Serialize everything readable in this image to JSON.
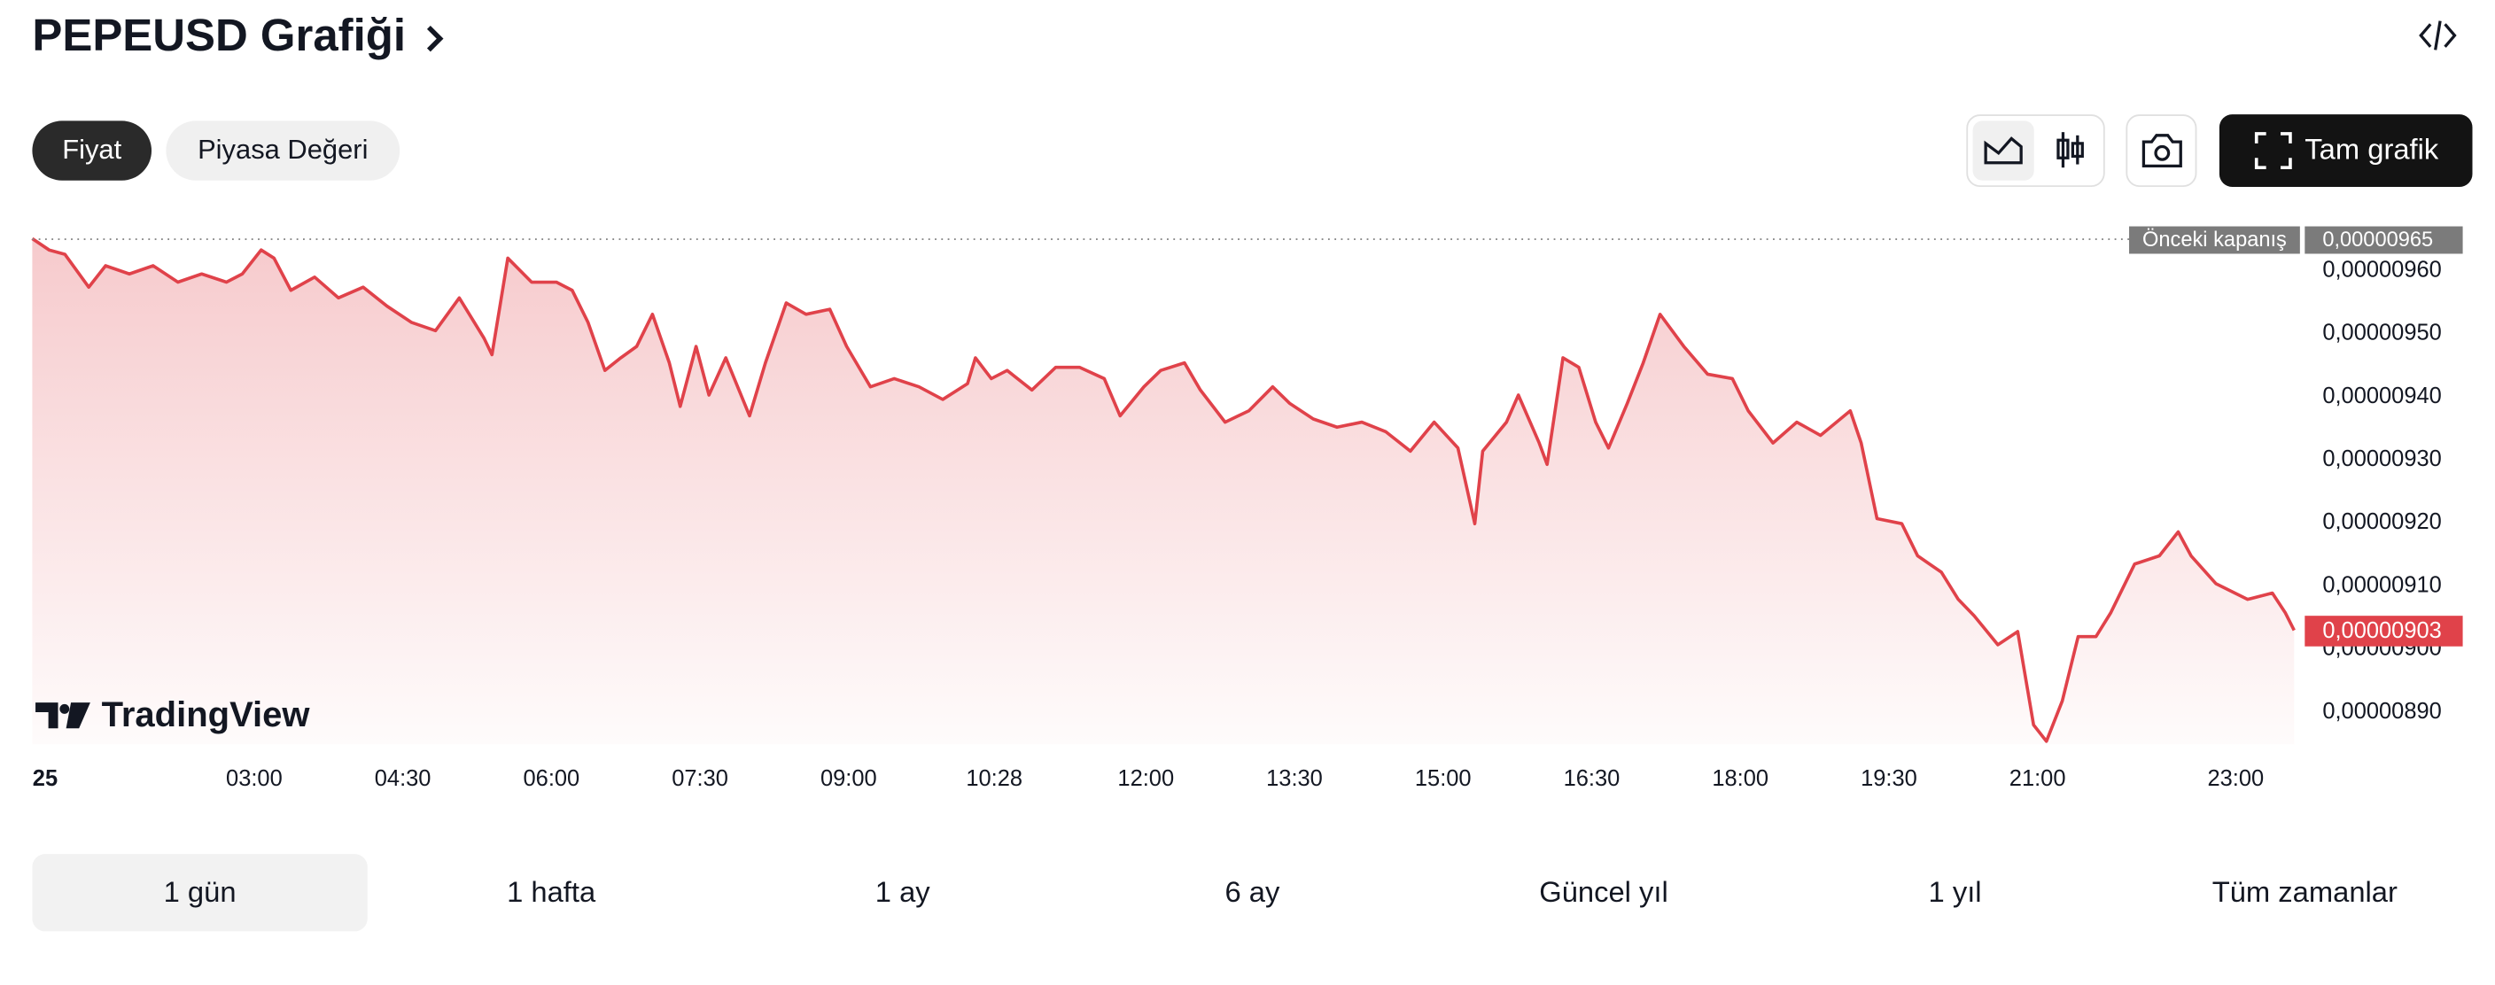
{
  "header": {
    "title": "PEPEUSD Grafiği"
  },
  "tabs": [
    "Fiyat",
    "Piyasa Değeri"
  ],
  "buttons": {
    "full_chart": "Tam grafik"
  },
  "chart_data": {
    "type": "line",
    "color": "#e0424a",
    "x": [
      0.76,
      0.93,
      1.09,
      1.33,
      1.5,
      1.74,
      1.98,
      2.23,
      2.47,
      2.72,
      2.88,
      3.07,
      3.2,
      3.37,
      3.61,
      3.85,
      4.1,
      4.34,
      4.59,
      4.83,
      5.07,
      5.32,
      5.4,
      5.56,
      5.8,
      6.05,
      6.21,
      6.37,
      6.54,
      6.7,
      6.86,
      7.02,
      7.19,
      7.3,
      7.46,
      7.59,
      7.76,
      8.0,
      8.16,
      8.37,
      8.57,
      8.81,
      8.98,
      9.22,
      9.46,
      9.71,
      9.95,
      10.2,
      10.28,
      10.44,
      10.6,
      10.85,
      11.09,
      11.33,
      11.58,
      11.74,
      11.98,
      12.15,
      12.39,
      12.55,
      12.8,
      13.04,
      13.28,
      13.45,
      13.69,
      13.93,
      14.18,
      14.42,
      14.67,
      14.91,
      15.15,
      15.32,
      15.4,
      15.64,
      15.76,
      15.97,
      16.05,
      16.21,
      16.37,
      16.54,
      16.67,
      16.86,
      17.02,
      17.19,
      17.43,
      17.67,
      17.92,
      18.08,
      18.33,
      18.57,
      18.81,
      19.11,
      19.22,
      19.38,
      19.63,
      19.79,
      20.03,
      20.2,
      20.36,
      20.6,
      20.8,
      20.96,
      21.09,
      21.25,
      21.41,
      21.59,
      21.74,
      21.98,
      22.23,
      22.42,
      22.55,
      22.8,
      23.12,
      23.37,
      23.5,
      23.59
    ],
    "values": [
      9.651e-06,
      9.633e-06,
      9.626e-06,
      9.574e-06,
      9.608e-06,
      9.595e-06,
      9.608e-06,
      9.582e-06,
      9.595e-06,
      9.582e-06,
      9.595e-06,
      9.633e-06,
      9.62e-06,
      9.569e-06,
      9.59e-06,
      9.557e-06,
      9.574e-06,
      9.544e-06,
      9.518e-06,
      9.505e-06,
      9.557e-06,
      9.493e-06,
      9.467e-06,
      9.62e-06,
      9.582e-06,
      9.582e-06,
      9.569e-06,
      9.518e-06,
      9.442e-06,
      9.462e-06,
      9.48e-06,
      9.531e-06,
      9.454e-06,
      9.385e-06,
      9.48e-06,
      9.403e-06,
      9.462e-06,
      9.37e-06,
      9.454e-06,
      9.549e-06,
      9.531e-06,
      9.539e-06,
      9.48e-06,
      9.416e-06,
      9.429e-06,
      9.416e-06,
      9.396e-06,
      9.421e-06,
      9.462e-06,
      9.429e-06,
      9.442e-06,
      9.411e-06,
      9.447e-06,
      9.447e-06,
      9.429e-06,
      9.37e-06,
      9.416e-06,
      9.442e-06,
      9.454e-06,
      9.411e-06,
      9.36e-06,
      9.378e-06,
      9.416e-06,
      9.39e-06,
      9.365e-06,
      9.352e-06,
      9.36e-06,
      9.345e-06,
      9.314e-06,
      9.36e-06,
      9.319e-06,
      9.199e-06,
      9.314e-06,
      9.36e-06,
      9.403e-06,
      9.327e-06,
      9.293e-06,
      9.462e-06,
      9.447e-06,
      9.36e-06,
      9.319e-06,
      9.39e-06,
      9.454e-06,
      9.531e-06,
      9.48e-06,
      9.436e-06,
      9.429e-06,
      9.378e-06,
      9.327e-06,
      9.36e-06,
      9.339e-06,
      9.378e-06,
      9.327e-06,
      9.207e-06,
      9.199e-06,
      9.148e-06,
      9.122e-06,
      9.079e-06,
      9.053e-06,
      9.007e-06,
      9.028e-06,
      8.88e-06,
      8.854e-06,
      8.918e-06,
      9.02e-06,
      9.02e-06,
      9.058e-06,
      9.135e-06,
      9.148e-06,
      9.186e-06,
      9.148e-06,
      9.104e-06,
      9.079e-06,
      9.089e-06,
      9.058e-06,
      9.03e-06
    ],
    "xlim": [
      0.76,
      23.6
    ],
    "ylim": [
      8.849e-06,
      9.664e-06
    ],
    "xticks": [
      {
        "value": 0.89,
        "label": "25"
      },
      {
        "value": 3,
        "label": "03:00"
      },
      {
        "value": 4.5,
        "label": "04:30"
      },
      {
        "value": 6,
        "label": "06:00"
      },
      {
        "value": 7.5,
        "label": "07:30"
      },
      {
        "value": 9,
        "label": "09:00"
      },
      {
        "value": 10.47,
        "label": "10:28"
      },
      {
        "value": 12,
        "label": "12:00"
      },
      {
        "value": 13.5,
        "label": "13:30"
      },
      {
        "value": 15,
        "label": "15:00"
      },
      {
        "value": 16.5,
        "label": "16:30"
      },
      {
        "value": 18,
        "label": "18:00"
      },
      {
        "value": 19.5,
        "label": "19:30"
      },
      {
        "value": 21,
        "label": "21:00"
      },
      {
        "value": 23,
        "label": "23:00"
      }
    ],
    "yticks": [
      {
        "value": 8.9e-06,
        "label": "0,00000890"
      },
      {
        "value": 9e-06,
        "label": "0,00000900"
      },
      {
        "value": 9.1e-06,
        "label": "0,00000910"
      },
      {
        "value": 9.2e-06,
        "label": "0,00000920"
      },
      {
        "value": 9.3e-06,
        "label": "0,00000930"
      },
      {
        "value": 9.4e-06,
        "label": "0,00000940"
      },
      {
        "value": 9.5e-06,
        "label": "0,00000950"
      },
      {
        "value": 9.6e-06,
        "label": "0,00000960"
      }
    ],
    "previous_close": {
      "title": "Önceki kapanış",
      "value": 9.65e-06,
      "label": "0,00000965"
    },
    "last_price": {
      "value": 9.03e-06,
      "label": "0,00000903"
    },
    "watermark": "TradingView"
  },
  "ranges": [
    "1 gün",
    "1 hafta",
    "1 ay",
    "6 ay",
    "Güncel yıl",
    "1 yıl",
    "Tüm zamanlar"
  ]
}
